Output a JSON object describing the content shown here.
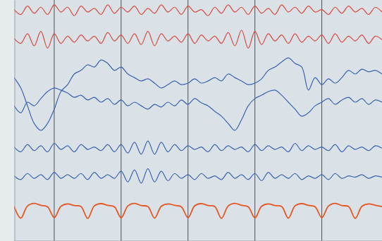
{
  "chart_data": {
    "type": "line",
    "x": [
      0,
      0.1,
      0.2,
      0.3,
      0.4,
      0.5,
      0.6,
      0.7,
      0.8,
      0.9,
      1.0,
      1.1,
      1.2,
      1.3,
      1.4,
      1.5,
      1.6,
      1.7,
      1.8,
      1.9,
      2.0,
      2.1,
      2.2,
      2.3,
      2.4,
      2.5,
      2.6,
      2.7,
      2.8,
      2.9,
      3.0,
      3.1,
      3.2,
      3.3,
      3.4,
      3.5,
      3.6,
      3.7,
      3.8,
      3.9,
      4.0,
      4.1,
      4.2,
      4.3,
      4.4,
      4.5,
      4.6,
      4.7,
      4.8,
      4.9,
      5.0,
      5.1,
      5.2,
      5.3,
      5.4,
      5.5
    ],
    "series": [
      {
        "color": "#d8473d",
        "values": [
          9.6,
          9.4,
          9.75,
          9.45,
          9.7,
          9.4,
          9.8,
          9.5,
          9.7,
          9.35,
          9.75,
          9.5,
          9.65,
          9.4,
          9.8,
          9.45,
          9.7,
          9.5,
          9.75,
          9.4,
          9.65,
          9.45,
          9.8,
          9.5,
          9.7,
          9.4,
          9.75,
          9.5,
          9.6,
          9.35,
          9.7,
          9.45,
          9.8,
          9.5,
          9.7,
          9.4,
          9.75,
          9.45,
          9.65,
          9.4,
          9.8,
          9.5,
          9.7,
          9.45,
          9.75,
          9.5,
          9.6,
          9.4,
          9.7,
          9.45,
          9.75,
          9.5,
          9.65,
          9.4,
          9.7,
          9.5
        ]
      },
      {
        "color": "#d8473d",
        "values": [
          8.4,
          8.2,
          8.6,
          8.1,
          8.7,
          8.0,
          8.6,
          8.2,
          8.5,
          8.25,
          8.55,
          8.3,
          8.5,
          8.2,
          8.65,
          8.3,
          8.55,
          8.2,
          8.6,
          8.15,
          8.7,
          8.1,
          8.6,
          8.3,
          8.5,
          8.25,
          8.6,
          8.2,
          8.55,
          8.3,
          8.5,
          8.2,
          8.65,
          8.1,
          8.75,
          8.0,
          8.7,
          8.15,
          8.6,
          8.3,
          8.55,
          8.2,
          8.6,
          8.25,
          8.5,
          8.3,
          8.55,
          8.2,
          8.6,
          8.25,
          8.5,
          8.3,
          8.55,
          8.2,
          8.5,
          8.35
        ]
      },
      {
        "color": "#3a62b2",
        "values": [
          6.78,
          6.35,
          5.61,
          4.88,
          4.59,
          4.88,
          5.47,
          6.2,
          6.49,
          6.93,
          7.08,
          7.31,
          7.22,
          7.51,
          7.37,
          7.08,
          7.22,
          6.93,
          6.78,
          6.64,
          6.73,
          6.55,
          6.35,
          6.49,
          6.64,
          6.49,
          6.55,
          6.73,
          6.55,
          6.64,
          6.78,
          6.64,
          6.93,
          6.78,
          6.64,
          6.49,
          6.55,
          6.73,
          7.08,
          7.22,
          7.43,
          7.6,
          7.37,
          7.22,
          6.26,
          6.78,
          6.49,
          6.73,
          6.55,
          6.78,
          7.08,
          6.93,
          7.13,
          7.02,
          7.08,
          6.93
        ]
      },
      {
        "color": "#3a62b2",
        "values": [
          5.61,
          5.32,
          5.76,
          5.61,
          5.91,
          6.2,
          6.35,
          6.26,
          6.14,
          5.96,
          6.05,
          5.85,
          5.96,
          5.76,
          5.91,
          5.67,
          5.85,
          5.61,
          5.76,
          5.61,
          5.47,
          5.67,
          5.56,
          5.76,
          5.61,
          5.85,
          5.67,
          5.91,
          5.73,
          5.61,
          5.38,
          5.18,
          4.88,
          4.59,
          5.03,
          5.61,
          5.91,
          6.05,
          6.2,
          6.26,
          6.05,
          5.76,
          5.47,
          5.18,
          5.32,
          5.61,
          5.76,
          5.91,
          5.67,
          5.85,
          5.96,
          5.76,
          5.91,
          5.67,
          5.85,
          5.76
        ]
      },
      {
        "color": "#3a62b2",
        "values": [
          3.9,
          3.7,
          4.0,
          3.75,
          3.95,
          3.7,
          4.05,
          3.8,
          3.95,
          3.7,
          4.0,
          3.8,
          3.9,
          3.75,
          4.0,
          3.7,
          4.0,
          3.65,
          4.1,
          3.6,
          4.15,
          3.6,
          4.1,
          3.7,
          4.0,
          3.75,
          3.95,
          3.8,
          3.9,
          3.7,
          4.0,
          3.75,
          3.95,
          3.8,
          3.9,
          3.7,
          4.0,
          3.75,
          3.95,
          3.8,
          3.9,
          3.7,
          4.05,
          3.75,
          3.95,
          3.8,
          3.9,
          3.75,
          4.0,
          3.7,
          3.95,
          3.8,
          3.9,
          3.75,
          3.95,
          3.85
        ]
      },
      {
        "color": "#3a62b2",
        "values": [
          2.7,
          2.55,
          2.8,
          2.6,
          2.75,
          2.55,
          2.85,
          2.6,
          2.75,
          2.6,
          2.8,
          2.55,
          2.85,
          2.6,
          2.75,
          2.6,
          2.9,
          2.45,
          2.95,
          2.4,
          3.0,
          2.45,
          2.9,
          2.5,
          2.8,
          2.6,
          2.75,
          2.55,
          2.8,
          2.6,
          2.7,
          2.55,
          2.85,
          2.6,
          2.75,
          2.55,
          2.8,
          2.5,
          2.85,
          2.6,
          2.75,
          2.6,
          2.8,
          2.55,
          2.7,
          2.6,
          2.75,
          2.55,
          2.8,
          2.6,
          2.7,
          2.65,
          2.75,
          2.6,
          2.7,
          2.65
        ]
      },
      {
        "color": "#e8541f",
        "values": [
          1.43,
          0.95,
          1.45,
          1.56,
          1.48,
          1.42,
          0.97,
          1.44,
          1.54,
          1.47,
          1.43,
          0.94,
          1.46,
          1.55,
          1.48,
          1.42,
          0.96,
          1.45,
          1.56,
          1.47,
          1.43,
          0.95,
          1.44,
          1.54,
          1.48,
          1.42,
          0.97,
          1.46,
          1.55,
          1.47,
          1.43,
          0.94,
          1.45,
          1.56,
          1.48,
          1.42,
          0.96,
          1.44,
          1.54,
          1.47,
          1.43,
          0.95,
          1.46,
          1.55,
          1.48,
          1.42,
          0.97,
          1.45,
          1.56,
          1.47,
          1.43,
          0.94,
          1.44,
          1.54,
          1.48,
          1.43
        ]
      }
    ],
    "xlim": [
      0,
      5.5
    ],
    "xticks": [
      0.6,
      1.6,
      2.6,
      3.6,
      4.6
    ],
    "ylim": [
      0,
      10
    ],
    "grid": true,
    "tick_labels": false
  }
}
